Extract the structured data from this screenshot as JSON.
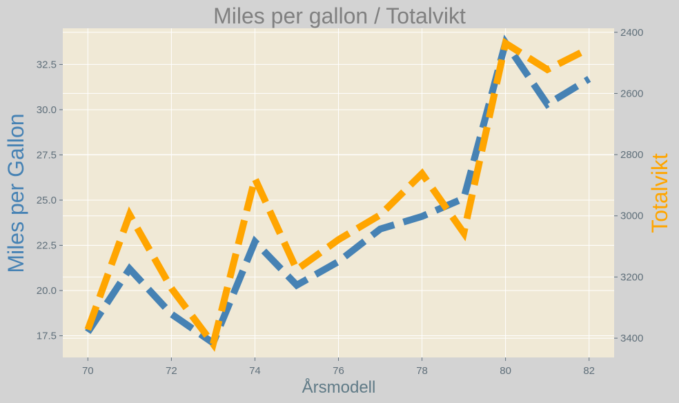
{
  "chart_data": {
    "type": "line",
    "title": "Miles per gallon / Totalvikt",
    "xlabel": "Årsmodell",
    "ylabel": "Miles per Gallon",
    "ylabel_right": "Totalvikt",
    "x": [
      70,
      71,
      72,
      73,
      74,
      75,
      76,
      77,
      78,
      79,
      80,
      81,
      82
    ],
    "series": [
      {
        "name": "Miles per Gallon",
        "axis": "left",
        "color": "#4682b4",
        "style": "dashed",
        "values": [
          17.7,
          21.2,
          18.7,
          17.1,
          22.7,
          20.3,
          21.6,
          23.4,
          24.1,
          25.1,
          33.7,
          30.3,
          31.7
        ]
      },
      {
        "name": "Totalvikt",
        "axis": "right",
        "color": "#ffa500",
        "style": "dashed",
        "values": [
          3372,
          2996,
          3237,
          3419,
          2878,
          3176,
          3078,
          2997,
          2862,
          3056,
          2436,
          2522,
          2453
        ]
      }
    ],
    "xlim": [
      69.4,
      82.6
    ],
    "ylim_left": [
      16.3,
      34.5
    ],
    "ylim_right": [
      3463,
      2387
    ],
    "x_ticks": [
      70,
      72,
      74,
      76,
      78,
      80,
      82
    ],
    "y_ticks_left": [
      17.5,
      20.0,
      22.5,
      25.0,
      27.5,
      30.0,
      32.5
    ],
    "y_ticks_right": [
      2400,
      2600,
      2800,
      3000,
      3200,
      3400
    ],
    "grid": true,
    "colors": {
      "figure_bg": "#d3d3d3",
      "plot_bg": "#f0e9d6",
      "grid": "#ffffff",
      "title": "#808080",
      "xlabel": "#5f7a86",
      "ylabel_left": "#4682b4",
      "ylabel_right": "#ffa500",
      "ticks": "#5f6f7a"
    }
  }
}
